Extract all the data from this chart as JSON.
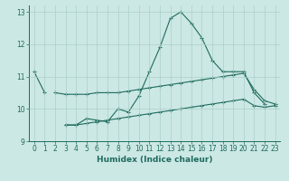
{
  "xlabel": "Humidex (Indice chaleur)",
  "background_color": "#cce8e4",
  "line_color": "#1e6b5e",
  "grid_color": "#aacfcb",
  "x_values": [
    0,
    1,
    2,
    3,
    4,
    5,
    6,
    7,
    8,
    9,
    10,
    11,
    12,
    13,
    14,
    15,
    16,
    17,
    18,
    19,
    20,
    21,
    22,
    23
  ],
  "y1": [
    11.15,
    10.5,
    null,
    9.5,
    9.5,
    9.7,
    9.65,
    9.6,
    10.0,
    9.9,
    10.4,
    11.15,
    11.9,
    12.8,
    13.0,
    12.65,
    12.2,
    11.5,
    11.15,
    11.15,
    11.15,
    10.5,
    10.15,
    null
  ],
  "y2": [
    null,
    null,
    10.5,
    10.45,
    10.45,
    10.45,
    10.5,
    10.5,
    10.5,
    10.55,
    10.6,
    10.65,
    10.7,
    10.75,
    10.8,
    10.85,
    10.9,
    10.95,
    11.0,
    11.05,
    11.1,
    10.6,
    10.25,
    10.15
  ],
  "y3": [
    null,
    null,
    null,
    9.5,
    9.5,
    9.55,
    9.6,
    9.65,
    9.7,
    9.75,
    9.8,
    9.85,
    9.9,
    9.95,
    10.0,
    10.05,
    10.1,
    10.15,
    10.2,
    10.25,
    10.3,
    10.1,
    10.05,
    10.1
  ],
  "ylim": [
    9.0,
    13.2
  ],
  "xlim": [
    -0.5,
    23.5
  ],
  "yticks": [
    9,
    10,
    11,
    12,
    13
  ],
  "xticks": [
    0,
    1,
    2,
    3,
    4,
    5,
    6,
    7,
    8,
    9,
    10,
    11,
    12,
    13,
    14,
    15,
    16,
    17,
    18,
    19,
    20,
    21,
    22,
    23
  ],
  "tick_fontsize": 5.5,
  "xlabel_fontsize": 6.5
}
